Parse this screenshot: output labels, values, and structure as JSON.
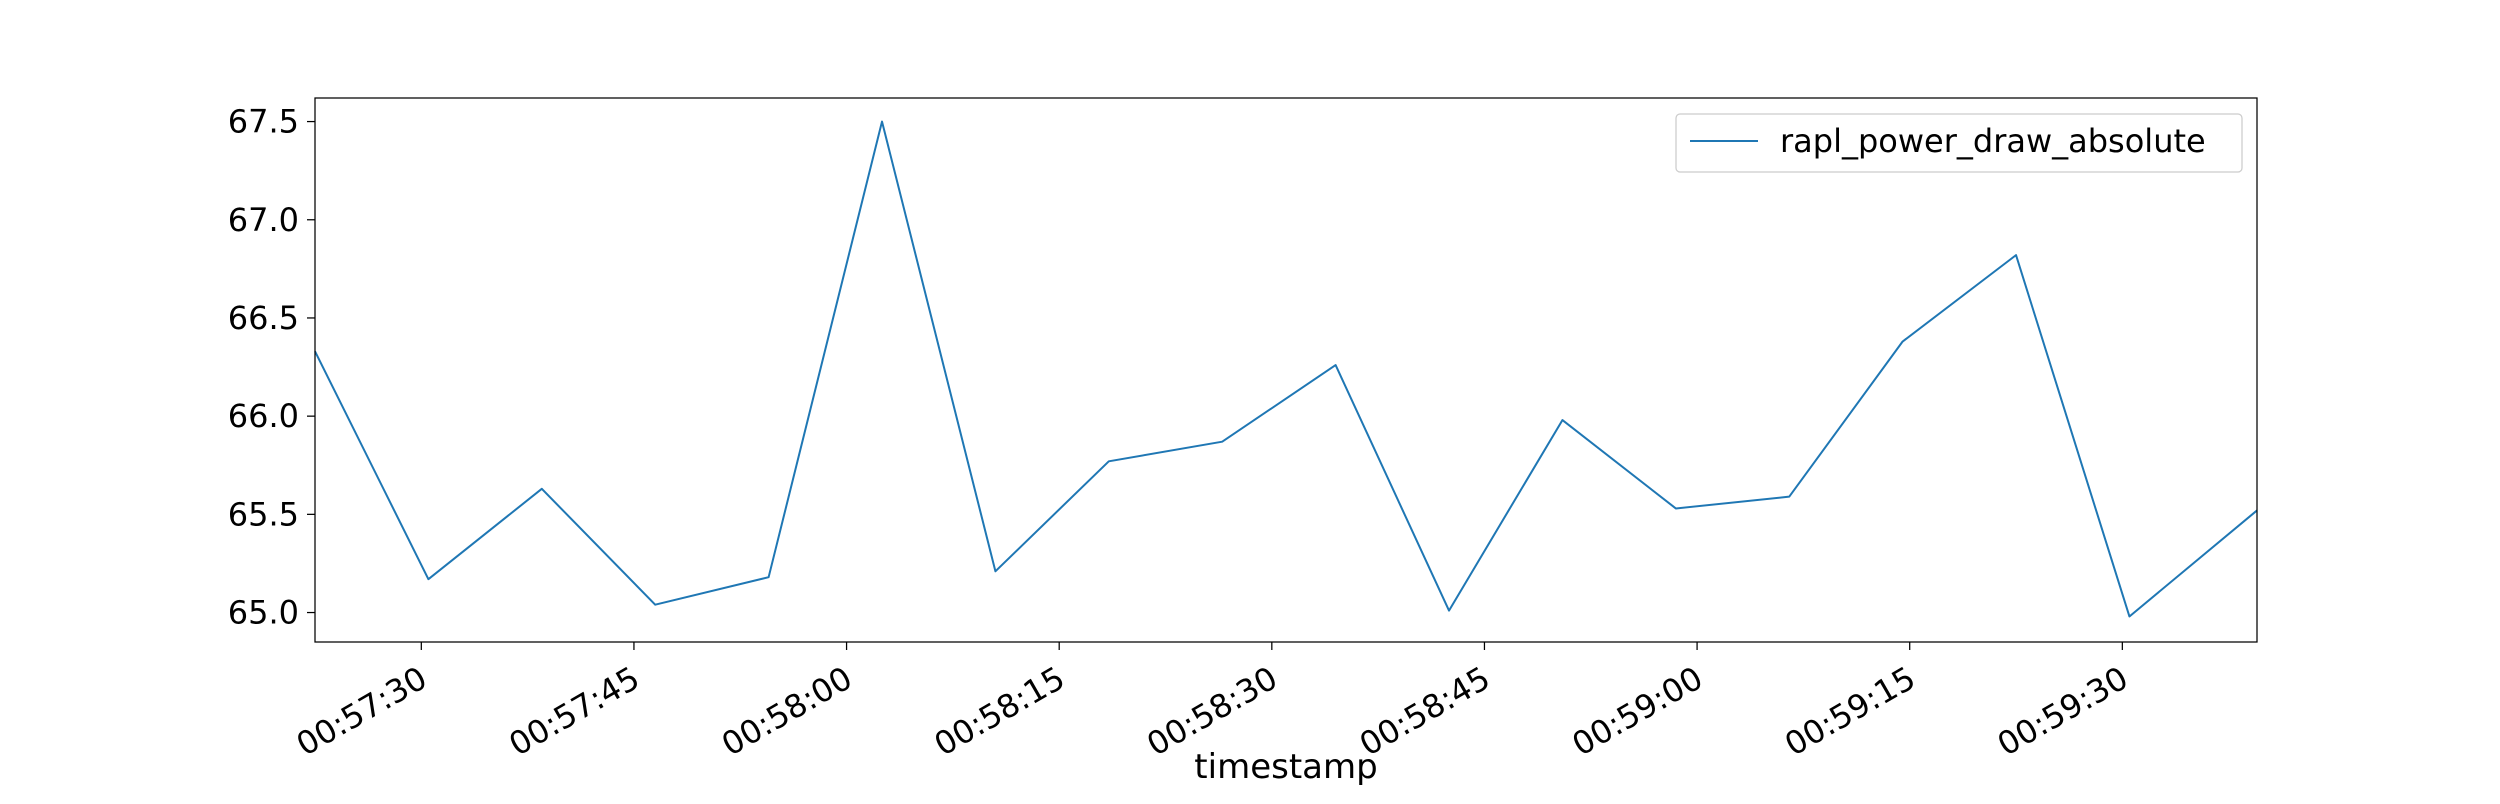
{
  "chart_data": {
    "type": "line",
    "title": "",
    "xlabel": "timestamp",
    "ylabel": "",
    "grid": false,
    "legend_position": "top-right",
    "x_tick_labels": [
      "00:57:30",
      "00:57:45",
      "00:58:00",
      "00:58:15",
      "00:58:30",
      "00:58:45",
      "00:59:00",
      "00:59:15",
      "00:59:30"
    ],
    "y_tick_labels": [
      "65.0",
      "65.5",
      "66.0",
      "66.5",
      "67.0",
      "67.5"
    ],
    "y_ticks": [
      65.0,
      65.5,
      66.0,
      66.5,
      67.0,
      67.5
    ],
    "xlim": [
      "00:57:22.5",
      "00:59:39.5"
    ],
    "ylim": [
      64.85,
      67.62
    ],
    "x": [
      "00:57:22.5",
      "00:57:30.5",
      "00:57:38.5",
      "00:57:46.5",
      "00:57:54.5",
      "00:58:02.5",
      "00:58:10.5",
      "00:58:18.5",
      "00:58:26.5",
      "00:58:34.5",
      "00:58:42.5",
      "00:58:50.5",
      "00:58:58.5",
      "00:59:06.5",
      "00:59:14.5",
      "00:59:22.5",
      "00:59:30.5",
      "00:59:39.5"
    ],
    "series": [
      {
        "name": "rapl_power_draw_absolute",
        "color": "#1f77b4",
        "values": [
          66.33,
          65.17,
          65.63,
          65.04,
          65.18,
          67.5,
          65.21,
          65.77,
          65.87,
          66.26,
          65.01,
          65.98,
          65.53,
          65.59,
          66.38,
          66.82,
          64.98,
          65.52
        ]
      }
    ]
  }
}
